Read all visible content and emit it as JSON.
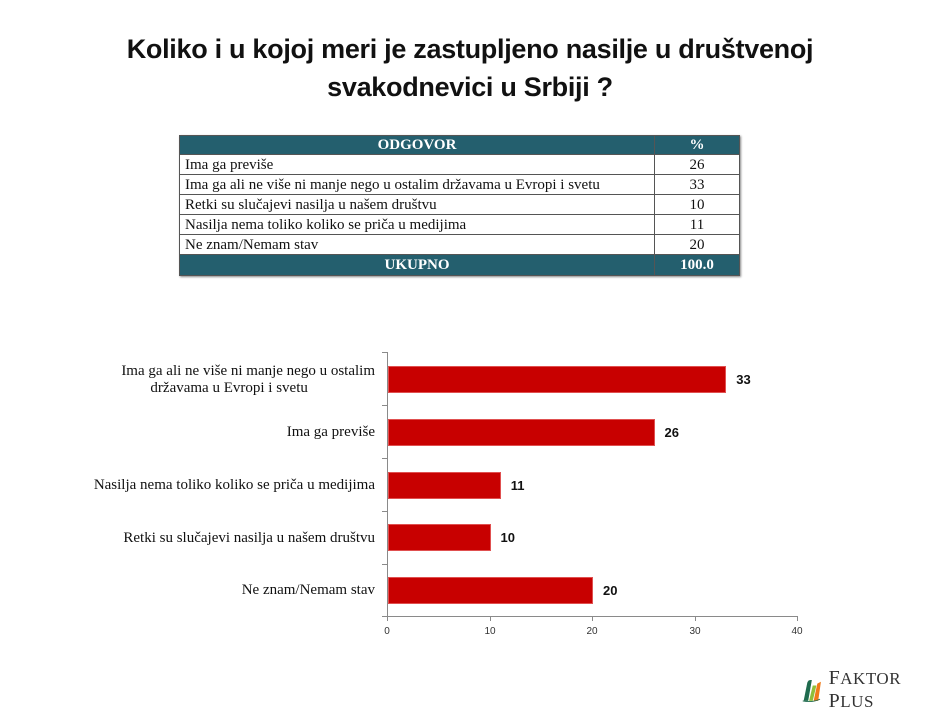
{
  "title": {
    "line1": "Koliko i u kojoj meri je zastupljeno nasilje u društvenoj",
    "line2": "svakodnevici u Srbiji ?"
  },
  "table": {
    "headers": [
      "ODGOVOR",
      "%"
    ],
    "rows": [
      {
        "answer": "Ima ga previše",
        "pct": "26"
      },
      {
        "answer": "Ima ga ali ne više ni manje nego u ostalim državama u Evropi i svetu",
        "pct": "33"
      },
      {
        "answer": "Retki su slučajevi nasilja u našem društvu",
        "pct": "10"
      },
      {
        "answer": "Nasilja nema toliko koliko se priča u medijima",
        "pct": "11"
      },
      {
        "answer": "Ne znam/Nemam stav",
        "pct": "20"
      }
    ],
    "total": {
      "label": "UKUPNO",
      "pct": "100.0"
    },
    "header_color": "#245f6e"
  },
  "chart_data": {
    "type": "bar",
    "orientation": "horizontal",
    "title": "Koliko i u kojoj meri je zastupljeno nasilje u društvenoj svakodnevici u Srbiji ?",
    "categories": [
      "Ima ga ali ne više ni manje nego u ostalim državama u Evropi i svetu",
      "Ima ga previše",
      "Nasilja nema toliko koliko se priča u medijima",
      "Retki su slučajevi nasilja u našem društvu",
      "Ne znam/Nemam stav"
    ],
    "category_labels": [
      {
        "line1": "Ima ga ali ne više ni manje nego u ostalim",
        "line2": "državama u Evropi i svetu"
      },
      {
        "line1": "Ima ga previše",
        "line2": ""
      },
      {
        "line1": "Nasilja nema toliko koliko se priča u medijima",
        "line2": ""
      },
      {
        "line1": "Retki su slučajevi nasilja u našem društvu",
        "line2": ""
      },
      {
        "line1": "Ne znam/Nemam stav",
        "line2": ""
      }
    ],
    "values": [
      33,
      26,
      11,
      10,
      20
    ],
    "data_labels": [
      "33",
      "26",
      "11",
      "10",
      "20"
    ],
    "xlabel": "",
    "ylabel": "",
    "xlim": [
      0,
      40
    ],
    "xticks": [
      "0",
      "10",
      "20",
      "30",
      "40"
    ],
    "grid": false,
    "legend": null,
    "bar_color": "#c80000"
  },
  "logo": {
    "text_first_initial": "F",
    "text_first_rest": "AKTOR",
    "text_second_initial": "P",
    "text_second_rest": "LUS"
  }
}
